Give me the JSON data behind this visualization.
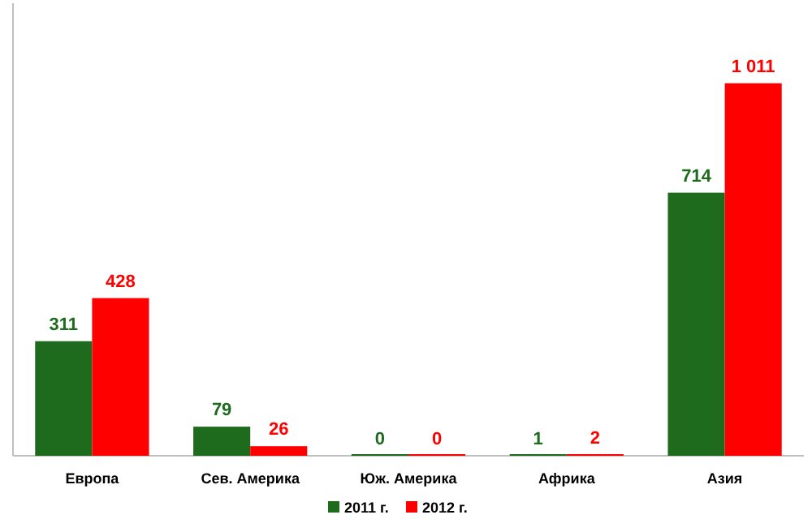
{
  "chart_data": {
    "type": "bar",
    "categories": [
      "Европа",
      "Сев. Америка",
      "Юж. Америка",
      "Африка",
      "Азия"
    ],
    "series": [
      {
        "name": "2011 г.",
        "color": "#1e6b1e",
        "values": [
          311,
          79,
          0,
          1,
          714
        ]
      },
      {
        "name": "2012 г.",
        "color": "#ff0000",
        "values": [
          428,
          26,
          0,
          2,
          1011
        ]
      }
    ],
    "data_labels": true,
    "legend": "bottom"
  }
}
